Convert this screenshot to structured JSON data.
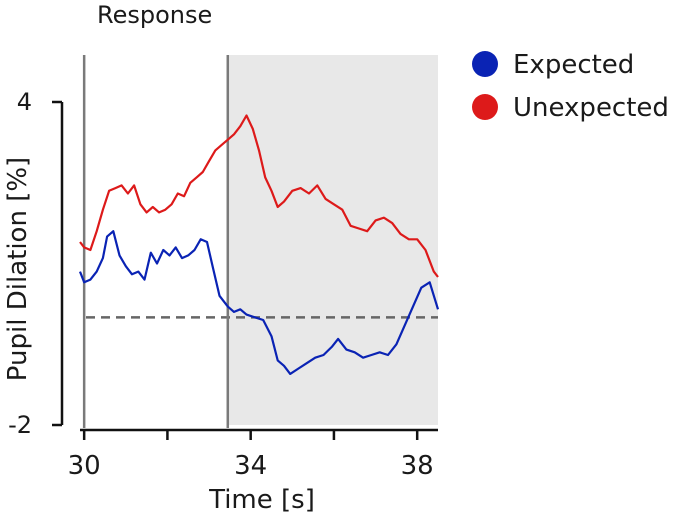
{
  "chart_data": {
    "type": "line",
    "title": "Response",
    "xlabel": "Time [s]",
    "ylabel": "Pupil Dilation [%]",
    "xlim": [
      29.9,
      38.5
    ],
    "ylim": [
      -2,
      4
    ],
    "xticks": [
      30,
      32,
      34,
      36,
      38
    ],
    "xtick_labels": [
      "30",
      "",
      "34",
      "",
      "38"
    ],
    "yticks": [
      4,
      -2
    ],
    "ytick_labels": [
      "4",
      "-2"
    ],
    "reference_line": {
      "y": 0,
      "style": "dashed"
    },
    "vertical_lines": [
      30,
      33.45
    ],
    "shaded_region": {
      "x_start": 33.45,
      "x_end": 38.5
    },
    "legend_position": "top-right",
    "series": [
      {
        "name": "Expected",
        "color": "#0a23b4",
        "x": [
          29.9,
          30.0,
          30.15,
          30.3,
          30.45,
          30.55,
          30.7,
          30.85,
          31.0,
          31.15,
          31.3,
          31.45,
          31.6,
          31.75,
          31.9,
          32.05,
          32.2,
          32.35,
          32.5,
          32.65,
          32.8,
          32.95,
          33.1,
          33.25,
          33.45,
          33.6,
          33.75,
          33.9,
          34.1,
          34.3,
          34.5,
          34.65,
          34.8,
          34.95,
          35.15,
          35.35,
          35.55,
          35.75,
          35.95,
          36.1,
          36.3,
          36.5,
          36.7,
          36.9,
          37.1,
          37.3,
          37.5,
          37.7,
          37.9,
          38.1,
          38.3,
          38.5
        ],
        "y": [
          0.85,
          0.65,
          0.7,
          0.85,
          1.1,
          1.5,
          1.6,
          1.15,
          0.95,
          0.8,
          0.85,
          0.7,
          1.2,
          1.0,
          1.25,
          1.15,
          1.3,
          1.1,
          1.15,
          1.25,
          1.45,
          1.4,
          0.9,
          0.4,
          0.2,
          0.1,
          0.15,
          0.05,
          0.0,
          -0.05,
          -0.35,
          -0.8,
          -0.9,
          -1.05,
          -0.95,
          -0.85,
          -0.75,
          -0.7,
          -0.55,
          -0.4,
          -0.6,
          -0.65,
          -0.75,
          -0.7,
          -0.65,
          -0.7,
          -0.5,
          -0.15,
          0.2,
          0.55,
          0.65,
          0.15
        ]
      },
      {
        "name": "Unexpected",
        "color": "#dd1a1a",
        "x": [
          29.9,
          30.0,
          30.15,
          30.3,
          30.45,
          30.6,
          30.75,
          30.9,
          31.05,
          31.2,
          31.35,
          31.5,
          31.65,
          31.8,
          31.95,
          32.1,
          32.25,
          32.4,
          32.55,
          32.7,
          32.85,
          33.0,
          33.15,
          33.3,
          33.45,
          33.6,
          33.75,
          33.9,
          34.05,
          34.2,
          34.35,
          34.5,
          34.65,
          34.8,
          35.0,
          35.2,
          35.4,
          35.6,
          35.8,
          36.0,
          36.2,
          36.4,
          36.6,
          36.8,
          37.0,
          37.2,
          37.4,
          37.6,
          37.8,
          38.0,
          38.2,
          38.4,
          38.5
        ],
        "y": [
          1.4,
          1.3,
          1.25,
          1.6,
          2.0,
          2.35,
          2.4,
          2.45,
          2.3,
          2.45,
          2.1,
          1.95,
          2.05,
          1.95,
          2.0,
          2.1,
          2.3,
          2.25,
          2.5,
          2.6,
          2.7,
          2.9,
          3.1,
          3.2,
          3.3,
          3.4,
          3.55,
          3.75,
          3.5,
          3.1,
          2.6,
          2.35,
          2.05,
          2.15,
          2.35,
          2.4,
          2.3,
          2.45,
          2.2,
          2.1,
          2.0,
          1.7,
          1.65,
          1.6,
          1.8,
          1.85,
          1.75,
          1.55,
          1.45,
          1.45,
          1.25,
          0.85,
          0.75
        ]
      }
    ]
  }
}
